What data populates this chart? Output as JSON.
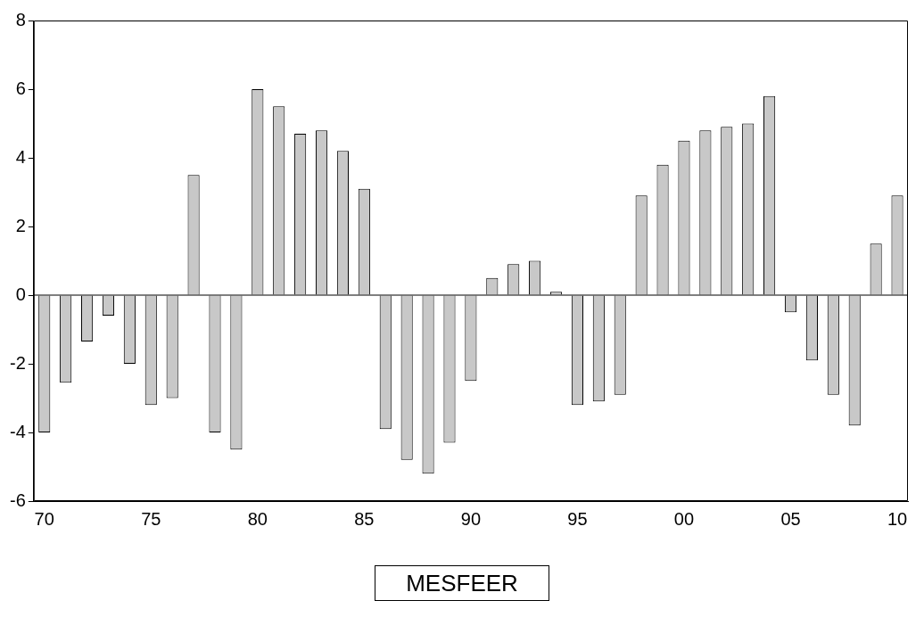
{
  "chart_data": {
    "type": "bar",
    "categories": [
      "70",
      null,
      null,
      null,
      null,
      "75",
      null,
      null,
      null,
      null,
      "80",
      null,
      null,
      null,
      null,
      "85",
      null,
      null,
      null,
      null,
      "90",
      null,
      null,
      null,
      null,
      "95",
      null,
      null,
      null,
      null,
      "00",
      null,
      null,
      null,
      null,
      "05",
      null,
      null,
      null,
      null,
      "10"
    ],
    "series": [
      {
        "name": "MESFEER",
        "color": "#c8c8c8",
        "values": [
          -4.0,
          -2.55,
          -1.35,
          -0.6,
          -2.0,
          -3.2,
          -3.0,
          3.5,
          -4.0,
          -4.5,
          6.0,
          5.5,
          4.7,
          4.8,
          4.2,
          3.1,
          -3.9,
          -4.8,
          -5.2,
          -4.3,
          -2.5,
          0.5,
          0.9,
          1.0,
          0.1,
          -3.2,
          -3.1,
          -2.9,
          2.9,
          3.8,
          4.5,
          4.8,
          4.9,
          5.0,
          5.8,
          -0.5,
          -1.9,
          -2.9,
          -3.8,
          1.5,
          2.9
        ]
      }
    ],
    "ylim": [
      -6,
      8
    ],
    "yticks": [
      -6,
      -4,
      -2,
      0,
      2,
      4,
      6,
      8
    ],
    "ref_lines": [
      {
        "axis": "y",
        "value": 0,
        "color": "#000000"
      }
    ],
    "grid": false,
    "legend": "bottom"
  }
}
